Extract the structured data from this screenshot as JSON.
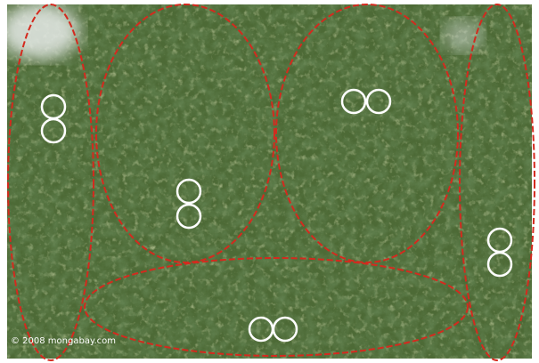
{
  "watermark": "© 2008 mongabay.com"
}
